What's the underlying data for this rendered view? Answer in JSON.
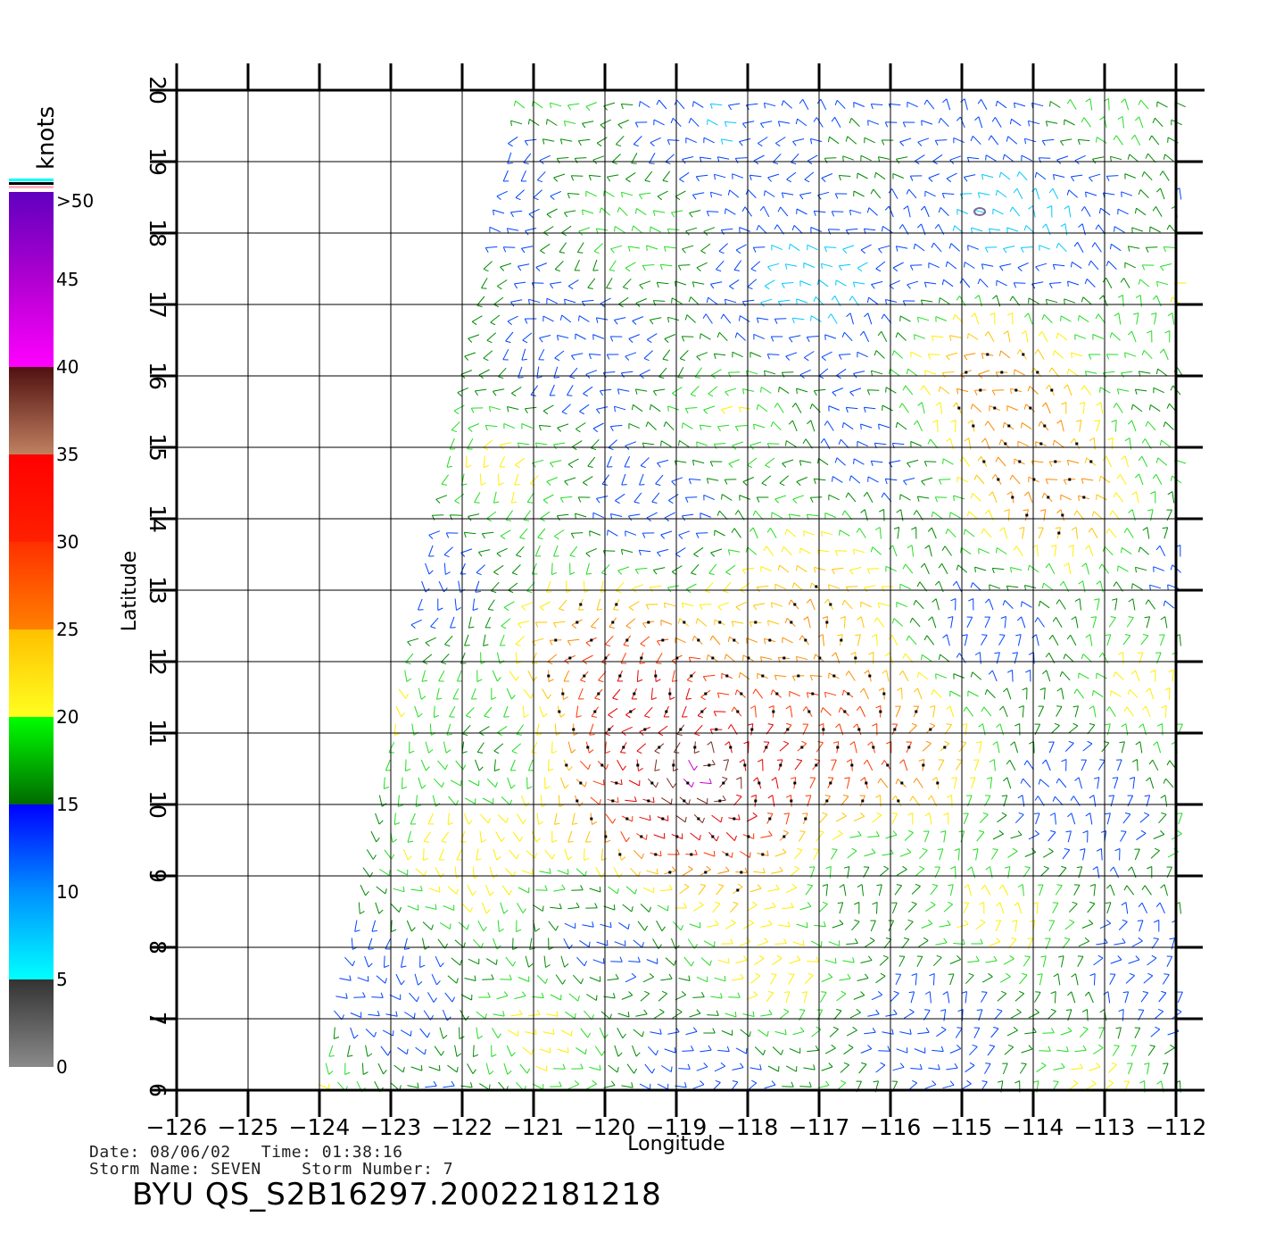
{
  "map": {
    "xlabel": "Longitude",
    "ylabel": "Latitude",
    "lon_range": [
      -126,
      -112
    ],
    "lat_range": [
      6,
      20
    ],
    "lon_ticks": [
      "-126",
      "-125",
      "-124",
      "-123",
      "-122",
      "-121",
      "-120",
      "-119",
      "-118",
      "-117",
      "-116",
      "-115",
      "-114",
      "-113",
      "-112"
    ],
    "lat_ticks": [
      "6",
      "7",
      "8",
      "9",
      "10",
      "11",
      "12",
      "13",
      "14",
      "15",
      "16",
      "17",
      "18",
      "19",
      "20"
    ],
    "grid": true,
    "swath_corners": {
      "top_left": [
        -121.2,
        20.0
      ],
      "top_right": [
        -111.6,
        20.0
      ],
      "bottom_left": [
        -124.0,
        6.0
      ],
      "bottom_right": [
        -111.6,
        6.0
      ]
    },
    "storm_center_marker": {
      "lon": -114.75,
      "lat": 18.3
    }
  },
  "colorbar": {
    "title": "knots",
    "labels": [
      ">50",
      "45",
      "40",
      "35",
      "30",
      "25",
      "20",
      "15",
      "10",
      "5",
      "0"
    ],
    "stops": [
      {
        "knots": 0,
        "color": "#8a8a8a"
      },
      {
        "knots": 5,
        "color": "#333333"
      },
      {
        "knots": 5.01,
        "color": "#00ffff"
      },
      {
        "knots": 10,
        "color": "#0090ff"
      },
      {
        "knots": 15,
        "color": "#0000ff"
      },
      {
        "knots": 15.01,
        "color": "#006a00"
      },
      {
        "knots": 20,
        "color": "#00ff00"
      },
      {
        "knots": 20.01,
        "color": "#ffff20"
      },
      {
        "knots": 25,
        "color": "#ffc000"
      },
      {
        "knots": 25.01,
        "color": "#ff8000"
      },
      {
        "knots": 30,
        "color": "#ff3000"
      },
      {
        "knots": 30.01,
        "color": "#ff2000"
      },
      {
        "knots": 35,
        "color": "#ff0000"
      },
      {
        "knots": 35.01,
        "color": "#c08060"
      },
      {
        "knots": 40,
        "color": "#501010"
      },
      {
        "knots": 40.01,
        "color": "#ff00ff"
      },
      {
        "knots": 45,
        "color": "#b000d0"
      },
      {
        "knots": 50,
        "color": "#6000c0"
      }
    ],
    "cap_colors": [
      "#00ffff",
      "#000000",
      "#ffb0c0"
    ]
  },
  "info": {
    "date_line": "Date: 08/06/02   Time: 01:38:16",
    "storm_line": "Storm Name: SEVEN    Storm Number: 7",
    "product_id": "BYU QS_S2B16297.20022181218"
  },
  "wind_field": {
    "barb_spacing_deg": 0.25,
    "fast_core": {
      "lon": -118.5,
      "lat": 10.8,
      "peak_knots": 38
    },
    "secondary_core": {
      "lon": -114,
      "lat": 15.5,
      "peak_knots": 30
    },
    "calm_zone": {
      "lon": -115.5,
      "lat": 18.0,
      "knots": 8
    }
  }
}
